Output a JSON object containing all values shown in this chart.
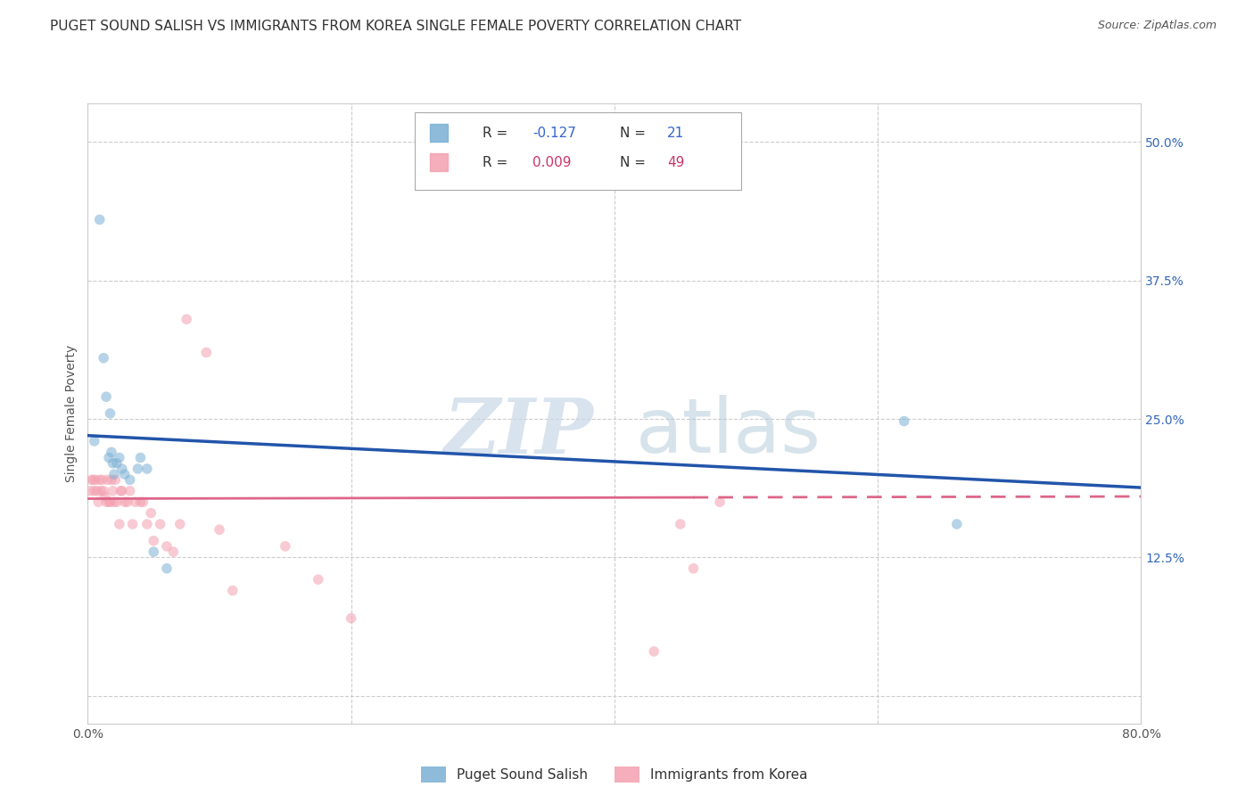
{
  "title": "PUGET SOUND SALISH VS IMMIGRANTS FROM KOREA SINGLE FEMALE POVERTY CORRELATION CHART",
  "source": "Source: ZipAtlas.com",
  "ylabel": "Single Female Poverty",
  "xlim": [
    0.0,
    0.8
  ],
  "ylim": [
    -0.025,
    0.535
  ],
  "yticks": [
    0.0,
    0.125,
    0.25,
    0.375,
    0.5
  ],
  "ytick_labels": [
    "",
    "12.5%",
    "25.0%",
    "37.5%",
    "50.0%"
  ],
  "xticks": [
    0.0,
    0.2,
    0.4,
    0.6,
    0.8
  ],
  "xtick_labels": [
    "0.0%",
    "",
    "",
    "",
    "80.0%"
  ],
  "grid_color": "#cccccc",
  "background_color": "#ffffff",
  "blue_color": "#7ab0d4",
  "pink_color": "#f4a0b0",
  "blue_line_color": "#2255aa",
  "pink_line_color": "#dd6688",
  "label_blue": "Puget Sound Salish",
  "label_pink": "Immigrants from Korea",
  "watermark_zip": "ZIP",
  "watermark_atlas": "atlas",
  "blue_points_x": [
    0.005,
    0.009,
    0.012,
    0.014,
    0.016,
    0.017,
    0.018,
    0.019,
    0.02,
    0.022,
    0.024,
    0.026,
    0.028,
    0.032,
    0.038,
    0.04,
    0.045,
    0.05,
    0.06,
    0.62,
    0.66
  ],
  "blue_points_y": [
    0.23,
    0.43,
    0.305,
    0.27,
    0.215,
    0.255,
    0.22,
    0.21,
    0.2,
    0.21,
    0.215,
    0.205,
    0.2,
    0.195,
    0.205,
    0.215,
    0.205,
    0.13,
    0.115,
    0.248,
    0.155
  ],
  "pink_points_x": [
    0.002,
    0.003,
    0.004,
    0.005,
    0.006,
    0.007,
    0.008,
    0.009,
    0.01,
    0.011,
    0.012,
    0.013,
    0.014,
    0.015,
    0.016,
    0.017,
    0.018,
    0.019,
    0.02,
    0.021,
    0.022,
    0.024,
    0.025,
    0.026,
    0.028,
    0.03,
    0.032,
    0.034,
    0.036,
    0.04,
    0.042,
    0.045,
    0.048,
    0.05,
    0.055,
    0.06,
    0.065,
    0.07,
    0.075,
    0.09,
    0.1,
    0.11,
    0.15,
    0.175,
    0.2,
    0.43,
    0.45,
    0.46,
    0.48
  ],
  "pink_points_y": [
    0.185,
    0.195,
    0.195,
    0.185,
    0.195,
    0.185,
    0.175,
    0.195,
    0.185,
    0.195,
    0.185,
    0.18,
    0.175,
    0.195,
    0.175,
    0.175,
    0.195,
    0.185,
    0.175,
    0.195,
    0.175,
    0.155,
    0.185,
    0.185,
    0.175,
    0.175,
    0.185,
    0.155,
    0.175,
    0.175,
    0.175,
    0.155,
    0.165,
    0.14,
    0.155,
    0.135,
    0.13,
    0.155,
    0.34,
    0.31,
    0.15,
    0.095,
    0.135,
    0.105,
    0.07,
    0.04,
    0.155,
    0.115,
    0.175
  ],
  "marker_size": 70,
  "marker_alpha": 0.55,
  "title_fontsize": 11,
  "axis_label_fontsize": 10,
  "tick_fontsize": 10,
  "legend_fontsize": 11,
  "source_fontsize": 9,
  "blue_line_start_x": 0.0,
  "blue_line_start_y": 0.235,
  "blue_line_end_x": 0.8,
  "blue_line_end_y": 0.188,
  "pink_line_start_x": 0.0,
  "pink_line_start_y": 0.178,
  "pink_line_end_x": 0.8,
  "pink_line_end_y": 0.18
}
